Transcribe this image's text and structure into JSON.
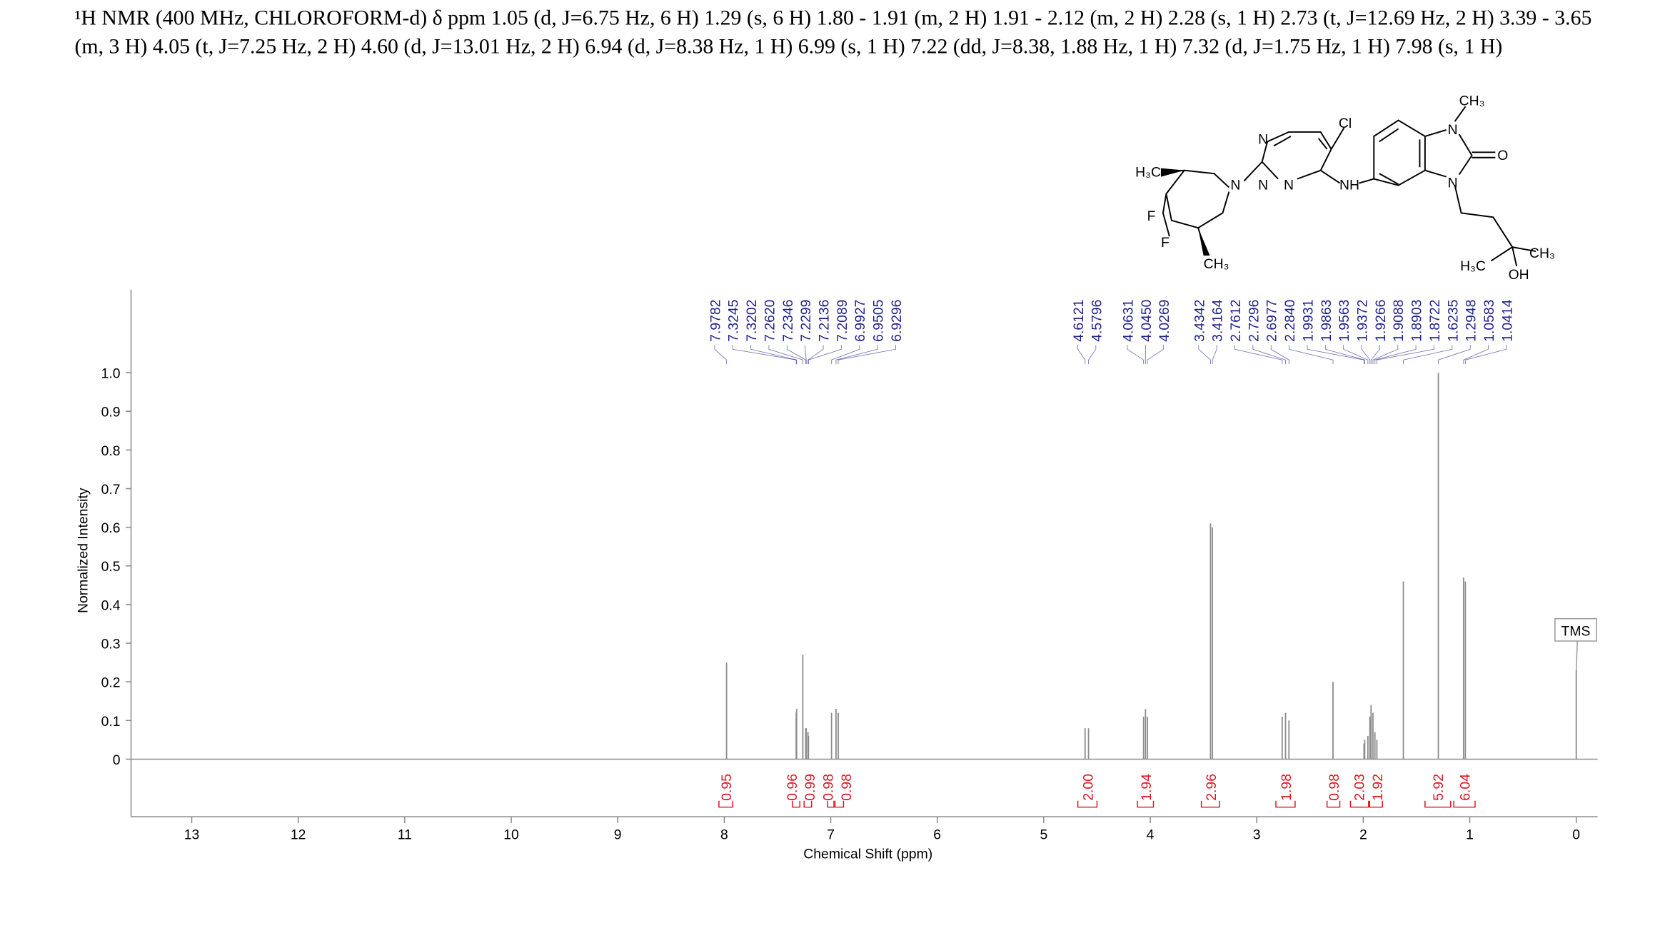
{
  "chart_data": {
    "type": "nmr",
    "title": "¹H NMR (400 MHz, CHLOROFORM-d) δ ppm 1.05 (d, J=6.75 Hz, 6 H) 1.29 (s, 6 H) 1.80 - 1.91 (m, 2 H) 1.91 - 2.12 (m, 2 H) 2.28 (s, 1 H) 2.73 (t, J=12.69 Hz, 2 H) 3.39 - 3.65 (m, 3 H) 4.05 (t, J=7.25 Hz, 2 H) 4.60 (d, J=13.01 Hz, 2 H) 6.94 (d, J=8.38 Hz, 1 H) 6.99 (s, 1 H) 7.22 (dd, J=8.38, 1.88 Hz, 1 H) 7.32 (d, J=1.75 Hz, 1 H) 7.98 (s, 1 H)",
    "x_label": "Chemical Shift (ppm)",
    "y_label": "Normalized Intensity",
    "xlim": [
      13.57,
      -0.2
    ],
    "ylim": [
      -0.149,
      1.215
    ],
    "xticks": [
      13,
      12,
      11,
      10,
      9,
      8,
      7,
      6,
      5,
      4,
      3,
      2,
      1,
      0
    ],
    "yticks": [
      0,
      0.1,
      0.2,
      0.3,
      0.4,
      0.5,
      0.6,
      0.7,
      0.8,
      0.9,
      {
        "value": 1,
        "label": "1.0"
      }
    ],
    "color": "#8c8c8c",
    "label_color": "#1f1f8f",
    "integral_color": "#e0141e",
    "x": [
      7.9782,
      7.3245,
      7.3202,
      {
        "value": 7.262,
        "label": "7.2620"
      },
      7.2346,
      7.2299,
      7.2136,
      7.2089,
      6.9927,
      6.9505,
      6.9296,
      4.6121,
      4.5796,
      4.0631,
      {
        "value": 4.045,
        "label": "4.0450"
      },
      4.0269,
      3.4342,
      3.4164,
      2.7612,
      2.7296,
      2.6977,
      {
        "value": 2.284,
        "label": "2.2840"
      },
      1.9931,
      1.9863,
      1.9563,
      1.9372,
      1.9266,
      1.9088,
      1.8903,
      1.8722,
      1.6235,
      1.2948,
      1.0583,
      1.0414
    ],
    "values": [
      0.25,
      0.12,
      0.13,
      0.27,
      0.08,
      0.08,
      0.07,
      0.06,
      0.12,
      0.13,
      0.12,
      0.08,
      0.08,
      0.11,
      0.13,
      0.11,
      0.61,
      0.6,
      0.11,
      0.12,
      0.1,
      0.2,
      0.04,
      0.05,
      0.06,
      0.11,
      0.14,
      0.12,
      0.07,
      0.05,
      0.46,
      1.0,
      0.47,
      0.46
    ],
    "tms": {
      "label": "TMS",
      "x": 0,
      "value": 0.23
    },
    "integrals": [
      {
        "range": [
          8.05,
          7.92
        ],
        "value": 0.95
      },
      {
        "range": [
          7.36,
          7.29
        ],
        "value": 0.96
      },
      {
        "range": [
          7.25,
          7.18
        ],
        "value": 0.99
      },
      {
        "range": [
          7.03,
          6.97
        ],
        "value": 0.98
      },
      {
        "range": [
          6.96,
          6.88
        ],
        "value": 0.98
      },
      {
        "range": [
          4.68,
          4.5
        ],
        "value": {
          "value": 2,
          "label": "2.00"
        }
      },
      {
        "range": [
          4.12,
          3.97
        ],
        "value": 1.94
      },
      {
        "range": [
          3.52,
          3.35
        ],
        "value": 2.96
      },
      {
        "range": [
          2.82,
          2.64
        ],
        "value": 1.98
      },
      {
        "range": [
          2.34,
          2.22
        ],
        "value": 0.98
      },
      {
        "range": [
          2.12,
          1.95
        ],
        "value": 2.03
      },
      {
        "range": [
          1.94,
          1.82
        ],
        "value": 1.92
      },
      {
        "range": [
          1.42,
          1.18
        ],
        "value": 5.92
      },
      {
        "range": [
          1.15,
          0.95
        ],
        "value": 6.04
      }
    ]
  },
  "structure": {
    "labels": [
      "N",
      "Cl",
      "N",
      "H₃C",
      "N",
      "N",
      "NH",
      "N",
      "O",
      "N",
      "CH₃",
      "F",
      "F",
      "CH₃",
      "H₃C",
      "CH₃",
      "OH"
    ]
  }
}
